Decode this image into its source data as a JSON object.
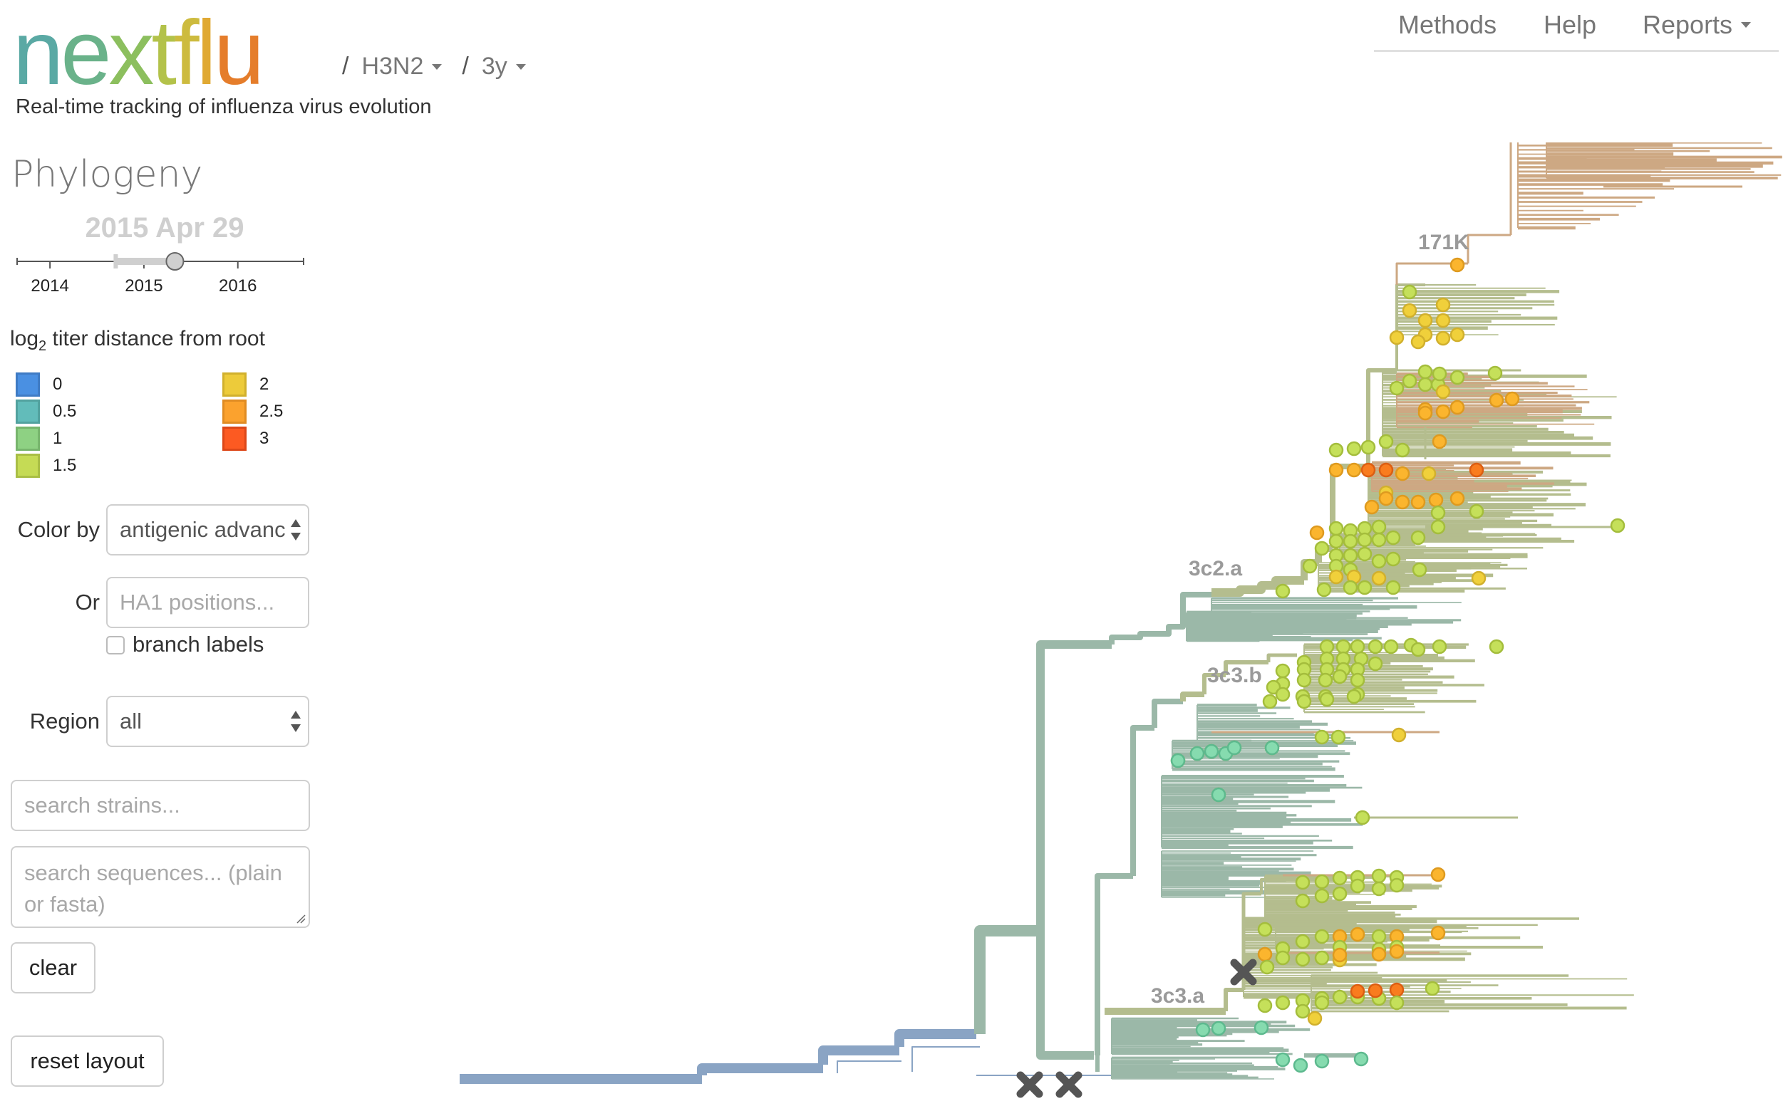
{
  "header": {
    "logo": {
      "text": "nextflu",
      "letters": [
        {
          "ch": "n",
          "color": "#5AA9A4"
        },
        {
          "ch": "e",
          "color": "#6AB28A"
        },
        {
          "ch": "x",
          "color": "#8CBF5E"
        },
        {
          "ch": "t",
          "color": "#B3C24A"
        },
        {
          "ch": "f",
          "color": "#CDBB3E"
        },
        {
          "ch": "l",
          "color": "#E0A933"
        },
        {
          "ch": "u",
          "color": "#E57D2B"
        }
      ]
    },
    "breadcrumbs": [
      {
        "sep": "/",
        "label": "H3N2"
      },
      {
        "sep": "/",
        "label": "3y"
      }
    ],
    "subtitle": "Real-time tracking of influenza virus evolution",
    "nav": [
      {
        "label": "Methods",
        "dropdown": false
      },
      {
        "label": "Help",
        "dropdown": false
      },
      {
        "label": "Reports",
        "dropdown": true
      }
    ]
  },
  "sidebar": {
    "title": "Phylogeny",
    "date_label": "2015 Apr 29",
    "time_slider": {
      "ticks": [
        "2014",
        "2015",
        "2016"
      ],
      "domain_years": [
        2013.65,
        2016.7
      ],
      "window_start_year": 2014.7,
      "current_year": 2015.33
    },
    "legend": {
      "title_prefix": "log",
      "title_sub": "2",
      "title_suffix": " titer distance from root",
      "items": [
        {
          "label": "0",
          "fill": "#4A90E2",
          "stroke": "#3F7BC4"
        },
        {
          "label": "0.5",
          "fill": "#62BCBA",
          "stroke": "#52A29F"
        },
        {
          "label": "1",
          "fill": "#8ED183",
          "stroke": "#77B56D"
        },
        {
          "label": "1.5",
          "fill": "#C5DB55",
          "stroke": "#A9BE45"
        },
        {
          "label": "2",
          "fill": "#EDCB3A",
          "stroke": "#D1B02D"
        },
        {
          "label": "2.5",
          "fill": "#FBA22E",
          "stroke": "#E08C23"
        },
        {
          "label": "3",
          "fill": "#FC5A22",
          "stroke": "#DC4718"
        }
      ]
    },
    "color_by": {
      "label": "Color by",
      "value": "antigenic advanc"
    },
    "positions": {
      "label": "Or",
      "placeholder": "HA1 positions..."
    },
    "branch_labels": {
      "label": "branch labels",
      "checked": false
    },
    "region": {
      "label": "Region",
      "value": "all"
    },
    "search_strains": {
      "placeholder": "search strains..."
    },
    "search_sequences": {
      "placeholder": "search sequences... (plain or fasta)"
    },
    "clear_button": "clear",
    "reset_button": "reset layout"
  },
  "chart_data": {
    "type": "phylogeny",
    "title": "Phylogeny",
    "color_scale_label": "log2 titer distance from root",
    "colors": {
      "root": "#8AA4C4",
      "backbone": "#9BB8A8",
      "clade": "#B4BD8E",
      "advanced": "#CDA883",
      "tip_teal": "#86DBAF",
      "tip_green": "#C5E05A",
      "tip_yellow": "#F0D03B",
      "tip_orange": "#FBB52E",
      "tip_red": "#F97C1E",
      "marker": "#555555"
    },
    "clade_labels": [
      "171K",
      "3c2.a",
      "3c3.b",
      "3c3.a"
    ],
    "vaccine_marker_count": 3
  }
}
